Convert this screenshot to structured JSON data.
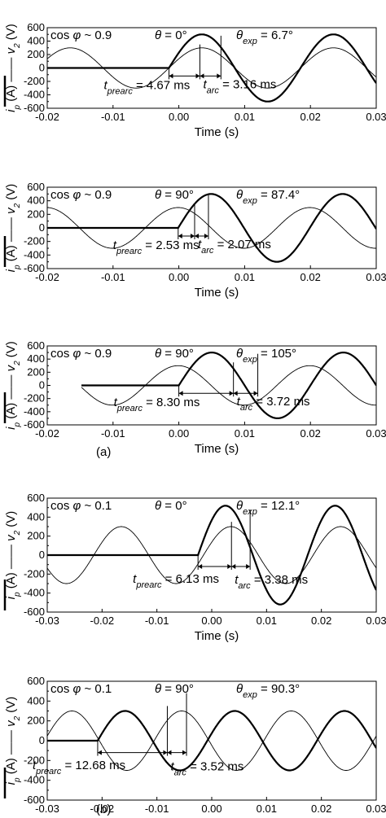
{
  "figure": {
    "label_a": "(a)",
    "label_b": "(b)"
  },
  "chart_data": [
    {
      "type": "line",
      "xlabel": "Time (s)",
      "ylabel": "i_p (A) —— v_2 (V)",
      "xlim": [
        -0.02,
        0.03
      ],
      "ylim": [
        -600,
        600
      ],
      "xticks": [
        "-0.02",
        "-0.01",
        "0.00",
        "0.01",
        "0.02",
        "0.03"
      ],
      "yticks": [
        "600",
        "400",
        "200",
        "0",
        "-200",
        "-400",
        "-600"
      ],
      "annotations": {
        "cosphi": "cos φ ~ 0.9",
        "theta": "θ = 0°",
        "theta_exp": "θexp = 6.7°",
        "t_prearc": "tprearc = 4.67 ms",
        "t_arc": "tarc = 3.16 ms"
      },
      "series": [
        {
          "name": "v_2",
          "style": "thin",
          "amp": 300,
          "period": 0.02,
          "phase_zero": -0.0015,
          "start": -0.02
        },
        {
          "name": "i_p",
          "style": "thick",
          "amp": 500,
          "period": 0.02,
          "onset": -0.0015,
          "flat_start": -0.02
        }
      ],
      "markers": {
        "prearc": [
          -0.0015,
          0.0032
        ],
        "arc": [
          0.0032,
          0.0064
        ]
      }
    },
    {
      "type": "line",
      "xlabel": "Time (s)",
      "ylabel": "i_p (A) —— v_2 (V)",
      "xlim": [
        -0.02,
        0.03
      ],
      "ylim": [
        -600,
        600
      ],
      "xticks": [
        "-0.02",
        "-0.01",
        "0.00",
        "0.01",
        "0.02",
        "0.03"
      ],
      "yticks": [
        "600",
        "400",
        "200",
        "0",
        "-200",
        "-400",
        "-600"
      ],
      "annotations": {
        "cosphi": "cos φ ~ 0.9",
        "theta": "θ = 90°",
        "theta_exp": "θexp = 87.4°",
        "t_prearc": "tprearc = 2.53 ms",
        "t_arc": "tarc = 2.07 ms"
      },
      "series": [
        {
          "name": "v_2",
          "style": "thin",
          "amp": 300,
          "period": 0.02,
          "phase_zero": -0.0051,
          "start": -0.02
        },
        {
          "name": "i_p",
          "style": "thick",
          "amp": 500,
          "period": 0.02,
          "onset": -0.0001,
          "flat_start": -0.02
        }
      ],
      "markers": {
        "prearc": [
          -0.0001,
          0.0024
        ],
        "arc": [
          0.0024,
          0.0045
        ]
      }
    },
    {
      "type": "line",
      "xlabel": "Time (s)",
      "ylabel": "i_p (A) —— v_2 (V)",
      "xlim": [
        -0.02,
        0.03
      ],
      "ylim": [
        -600,
        600
      ],
      "xticks": [
        "-0.02",
        "-0.01",
        "0.00",
        "0.01",
        "0.02",
        "0.03"
      ],
      "yticks": [
        "600",
        "400",
        "200",
        "0",
        "-200",
        "-400",
        "-600"
      ],
      "annotations": {
        "cosphi": "cos φ ~ 0.9",
        "theta": "θ = 90°",
        "theta_exp": "θexp = 105°",
        "t_prearc": "tprearc = 8.30 ms",
        "t_arc": "tarc = 3.72 ms"
      },
      "series": [
        {
          "name": "v_2",
          "style": "thin",
          "amp": 300,
          "period": 0.02,
          "phase_zero": -0.0051,
          "start": -0.0148
        },
        {
          "name": "i_p",
          "style": "thick",
          "amp": 500,
          "period": 0.02,
          "onset": 0.0,
          "flat_start": -0.0148
        }
      ],
      "markers": {
        "prearc": [
          0.0,
          0.0083
        ],
        "arc": [
          0.0083,
          0.012
        ]
      }
    },
    {
      "type": "line",
      "xlabel": "Time (s)",
      "ylabel": "i_p (A) —— v_2 (V)",
      "xlim": [
        -0.03,
        0.03
      ],
      "ylim": [
        -600,
        600
      ],
      "xticks": [
        "-0.03",
        "-0.02",
        "-0.01",
        "0.00",
        "0.01",
        "0.02",
        "0.03"
      ],
      "yticks": [
        "600",
        "400",
        "200",
        "0",
        "-200",
        "-400",
        "-600"
      ],
      "annotations": {
        "cosphi": "cos φ ~ 0.1",
        "theta": "θ = 0°",
        "theta_exp": "θexp = 12.1°",
        "t_prearc": "tprearc = 6.13 ms",
        "t_arc": "tarc = 3.38 ms"
      },
      "series": [
        {
          "name": "v_2",
          "style": "thin",
          "amp": 300,
          "period": 0.02,
          "phase_zero": -0.0215,
          "start": -0.03
        },
        {
          "name": "i_p",
          "style": "thick",
          "amp": 520,
          "period": 0.02,
          "onset": -0.0025,
          "flat_start": -0.03
        }
      ],
      "markers": {
        "prearc": [
          -0.0025,
          0.0036
        ],
        "arc": [
          0.0036,
          0.007
        ]
      }
    },
    {
      "type": "line",
      "xlabel": "Time (s)",
      "ylabel": "i_p (A) —— v_2 (V)",
      "xlim": [
        -0.03,
        0.03
      ],
      "ylim": [
        -600,
        600
      ],
      "xticks": [
        "-0.03",
        "-0.02",
        "-0.01",
        "0.00",
        "0.01",
        "0.02",
        "0.03"
      ],
      "yticks": [
        "600",
        "400",
        "200",
        "0",
        "-200",
        "-400",
        "-600"
      ],
      "annotations": {
        "cosphi": "cos φ ~ 0.1",
        "theta": "θ = 90°",
        "theta_exp": "θexp = 90.3°",
        "t_prearc": "tprearc = 12.68 ms",
        "t_arc": "tarc = 3.52 ms"
      },
      "series": [
        {
          "name": "v_2",
          "style": "thin",
          "amp": 300,
          "period": 0.02,
          "phase_zero": -0.0305,
          "start": -0.03
        },
        {
          "name": "i_p",
          "style": "thick",
          "amp": 300,
          "period": 0.02,
          "onset": -0.0208,
          "flat_start": -0.03
        }
      ],
      "markers": {
        "prearc": [
          -0.0208,
          -0.0081
        ],
        "arc": [
          -0.0081,
          -0.0046
        ]
      }
    }
  ]
}
